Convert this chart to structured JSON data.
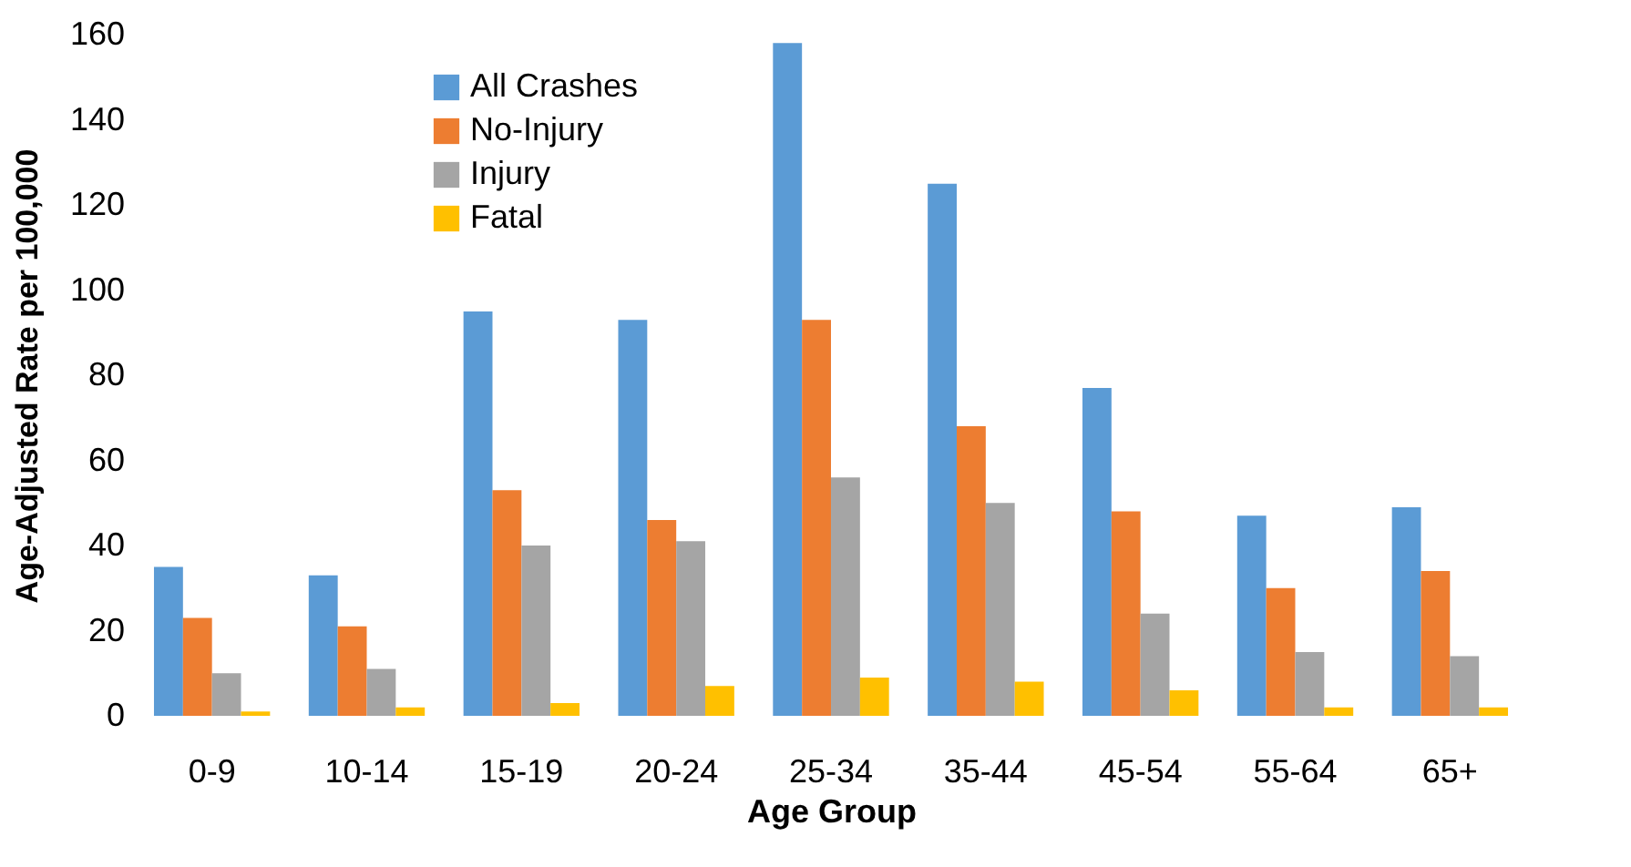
{
  "chart_data": {
    "type": "bar",
    "xlabel": "Age Group",
    "ylabel": "Age-Adjusted Rate per 100,000",
    "categories": [
      "0-9",
      "10-14",
      "15-19",
      "20-24",
      "25-34",
      "35-44",
      "45-54",
      "55-64",
      "65+"
    ],
    "series": [
      {
        "name": "All Crashes",
        "color": "#5b9bd5",
        "values": [
          35,
          33,
          95,
          93,
          158,
          125,
          77,
          47,
          49
        ]
      },
      {
        "name": "No-Injury",
        "color": "#ed7d31",
        "values": [
          23,
          21,
          53,
          46,
          93,
          68,
          48,
          30,
          34
        ]
      },
      {
        "name": "Injury",
        "color": "#a5a5a5",
        "values": [
          10,
          11,
          40,
          41,
          56,
          50,
          24,
          15,
          14
        ]
      },
      {
        "name": "Fatal",
        "color": "#ffc000",
        "values": [
          1,
          2,
          3,
          7,
          9,
          8,
          6,
          2,
          2
        ]
      }
    ],
    "ylim": [
      0,
      160
    ],
    "yticks": [
      0,
      20,
      40,
      60,
      80,
      100,
      120,
      140,
      160
    ],
    "grid": false,
    "legend": "top left"
  }
}
